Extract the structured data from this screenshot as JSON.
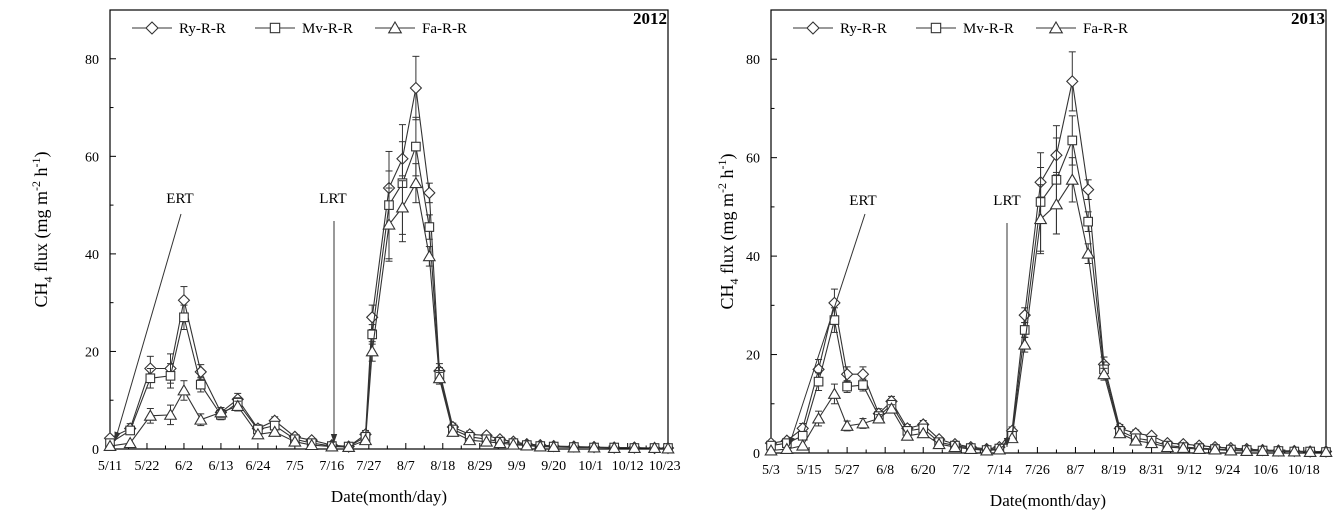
{
  "chart_data": [
    {
      "type": "line",
      "panel_label": "2012",
      "xlabel": "Date(month/day)",
      "ylabel": {
        "base": "CH",
        "sub": "4",
        "mid": " flux (mg m",
        "sup1": "-2",
        "gap": " h",
        "sup2": "-1",
        "end": ")"
      },
      "ylim": [
        0,
        90
      ],
      "yticks": [
        0,
        20,
        40,
        60,
        80
      ],
      "xlim": [
        0,
        166
      ],
      "xticks": [
        {
          "label": "5/11",
          "day": 0
        },
        {
          "label": "5/22",
          "day": 11
        },
        {
          "label": "6/2",
          "day": 22
        },
        {
          "label": "6/13",
          "day": 33
        },
        {
          "label": "6/24",
          "day": 44
        },
        {
          "label": "7/5",
          "day": 55
        },
        {
          "label": "7/16",
          "day": 66
        },
        {
          "label": "7/27",
          "day": 77
        },
        {
          "label": "8/7",
          "day": 88
        },
        {
          "label": "8/18",
          "day": 99
        },
        {
          "label": "8/29",
          "day": 110
        },
        {
          "label": "9/9",
          "day": 121
        },
        {
          "label": "9/20",
          "day": 132
        },
        {
          "label": "10/1",
          "day": 143
        },
        {
          "label": "10/12",
          "day": 154
        },
        {
          "label": "10/23",
          "day": 165
        }
      ],
      "x": [
        0,
        6,
        12,
        18,
        22,
        27,
        33,
        38,
        44,
        49,
        55,
        60,
        66,
        71,
        76,
        78,
        83,
        87,
        91,
        95,
        98,
        102,
        107,
        112,
        116,
        120,
        124,
        128,
        132,
        138,
        144,
        150,
        156,
        162,
        166
      ],
      "series": [
        {
          "name": "Ry-R-R",
          "marker": "diamond",
          "values": [
            2.2,
            4.2,
            16.5,
            16.5,
            30.5,
            15.8,
            7.5,
            10.2,
            4.2,
            5.8,
            2.5,
            1.8,
            0.8,
            0.5,
            3.0,
            27.0,
            53.5,
            59.5,
            74.0,
            52.5,
            16.0,
            4.5,
            3.0,
            2.8,
            2.0,
            1.5,
            1.0,
            0.8,
            0.6,
            0.5,
            0.4,
            0.3,
            0.3,
            0.2,
            0.2
          ],
          "err": [
            0.5,
            1.0,
            2.5,
            3.0,
            2.8,
            1.5,
            1.0,
            1.2,
            0.8,
            0.8,
            0.5,
            0.4,
            0.3,
            0.3,
            0.8,
            2.5,
            3.5,
            3.5,
            6.5,
            2.0,
            1.5,
            0.8,
            0.7,
            0.5,
            0.5,
            0.4,
            0.3,
            0.3,
            0.2,
            0.2,
            0.2,
            0.1,
            0.1,
            0.1,
            0.1
          ]
        },
        {
          "name": "Mv-R-R",
          "marker": "square",
          "values": [
            1.2,
            3.8,
            14.5,
            15.0,
            27.0,
            13.2,
            7.0,
            9.5,
            4.0,
            4.8,
            2.0,
            1.2,
            0.6,
            0.5,
            2.5,
            23.5,
            50.0,
            54.5,
            62.0,
            45.5,
            15.2,
            4.0,
            2.5,
            2.0,
            1.5,
            1.2,
            0.8,
            0.6,
            0.5,
            0.4,
            0.3,
            0.3,
            0.2,
            0.2,
            0.2
          ],
          "err": [
            0.4,
            0.8,
            2.0,
            2.5,
            2.5,
            1.5,
            1.0,
            1.0,
            0.7,
            0.7,
            0.4,
            0.3,
            0.2,
            0.2,
            0.6,
            2.0,
            11.0,
            12.0,
            6.0,
            2.5,
            1.5,
            0.7,
            0.6,
            0.5,
            0.4,
            0.3,
            0.3,
            0.2,
            0.2,
            0.2,
            0.1,
            0.1,
            0.1,
            0.1,
            0.1
          ]
        },
        {
          "name": "Fa-R-R",
          "marker": "triangle",
          "values": [
            0.6,
            1.2,
            6.8,
            7.0,
            12.0,
            6.0,
            7.5,
            8.8,
            3.0,
            3.5,
            1.5,
            0.8,
            0.5,
            0.4,
            1.8,
            20.0,
            46.0,
            49.5,
            54.5,
            39.5,
            14.5,
            3.5,
            1.8,
            1.5,
            1.2,
            0.9,
            0.7,
            0.5,
            0.4,
            0.3,
            0.3,
            0.2,
            0.2,
            0.2,
            0.1
          ],
          "err": [
            0.3,
            0.5,
            1.5,
            2.0,
            2.0,
            1.2,
            1.0,
            1.0,
            0.6,
            0.6,
            0.3,
            0.3,
            0.2,
            0.2,
            0.5,
            2.0,
            7.5,
            5.5,
            4.0,
            2.0,
            1.2,
            0.6,
            0.4,
            0.4,
            0.3,
            0.3,
            0.2,
            0.2,
            0.2,
            0.1,
            0.1,
            0.1,
            0.1,
            0.1,
            0.1
          ]
        }
      ],
      "annotations": [
        {
          "label": "ERT",
          "day": 0
        },
        {
          "label": "LRT",
          "day": 66
        }
      ],
      "legend": "top-left"
    },
    {
      "type": "line",
      "panel_label": "2013",
      "xlabel": "Date(month/day)",
      "ylabel": {
        "base": "CH",
        "sub": "4",
        "mid": " flux (mg m",
        "sup1": "-2",
        "gap": " h",
        "sup2": "-1",
        "end": ")"
      },
      "ylim": [
        0,
        90
      ],
      "yticks": [
        0,
        20,
        40,
        60,
        80
      ],
      "xlim": [
        0,
        175
      ],
      "xticks": [
        {
          "label": "5/3",
          "day": 0
        },
        {
          "label": "5/15",
          "day": 12
        },
        {
          "label": "5/27",
          "day": 24
        },
        {
          "label": "6/8",
          "day": 36
        },
        {
          "label": "6/20",
          "day": 48
        },
        {
          "label": "7/2",
          "day": 60
        },
        {
          "label": "7/14",
          "day": 72
        },
        {
          "label": "7/26",
          "day": 84
        },
        {
          "label": "8/7",
          "day": 96
        },
        {
          "label": "8/19",
          "day": 108
        },
        {
          "label": "8/31",
          "day": 120
        },
        {
          "label": "9/12",
          "day": 132
        },
        {
          "label": "9/24",
          "day": 144
        },
        {
          "label": "10/6",
          "day": 156
        },
        {
          "label": "10/18",
          "day": 168
        }
      ],
      "x": [
        0,
        5,
        10,
        15,
        20,
        24,
        29,
        34,
        38,
        43,
        48,
        53,
        58,
        63,
        68,
        72,
        76,
        80,
        85,
        90,
        95,
        100,
        105,
        110,
        115,
        120,
        125,
        130,
        135,
        140,
        145,
        150,
        155,
        160,
        165,
        170,
        175
      ],
      "series": [
        {
          "name": "Ry-R-R",
          "marker": "diamond",
          "values": [
            2.0,
            2.5,
            5.0,
            17.0,
            30.5,
            16.0,
            16.0,
            8.0,
            10.5,
            5.0,
            5.8,
            2.8,
            1.8,
            1.2,
            0.8,
            1.2,
            4.5,
            28.0,
            55.0,
            60.5,
            75.5,
            53.5,
            18.0,
            5.0,
            4.0,
            3.5,
            2.0,
            1.8,
            1.5,
            1.2,
            1.0,
            0.8,
            0.6,
            0.5,
            0.4,
            0.3,
            0.3
          ],
          "err": [
            0.4,
            0.6,
            1.0,
            2.0,
            2.8,
            1.5,
            1.5,
            1.0,
            1.0,
            0.8,
            0.8,
            0.5,
            0.4,
            0.3,
            0.3,
            0.3,
            0.8,
            1.5,
            3.0,
            3.5,
            6.0,
            2.0,
            1.5,
            0.8,
            0.7,
            0.6,
            0.5,
            0.4,
            0.3,
            0.3,
            0.2,
            0.2,
            0.2,
            0.1,
            0.1,
            0.1,
            0.1
          ]
        },
        {
          "name": "Mv-R-R",
          "marker": "square",
          "values": [
            1.5,
            2.0,
            3.5,
            14.5,
            27.0,
            13.5,
            13.8,
            7.5,
            9.8,
            4.5,
            5.0,
            2.2,
            1.5,
            1.0,
            0.6,
            0.9,
            3.5,
            25.0,
            51.0,
            55.5,
            63.5,
            47.0,
            17.0,
            4.5,
            3.0,
            2.5,
            1.5,
            1.2,
            1.0,
            0.8,
            0.7,
            0.6,
            0.5,
            0.4,
            0.3,
            0.3,
            0.2
          ],
          "err": [
            0.3,
            0.5,
            0.8,
            1.8,
            2.5,
            1.2,
            1.2,
            0.8,
            0.8,
            0.7,
            0.7,
            0.4,
            0.3,
            0.2,
            0.2,
            0.2,
            0.6,
            1.5,
            10.0,
            11.0,
            5.0,
            2.0,
            1.5,
            0.7,
            0.6,
            0.5,
            0.4,
            0.3,
            0.3,
            0.2,
            0.2,
            0.2,
            0.1,
            0.1,
            0.1,
            0.1,
            0.1
          ]
        },
        {
          "name": "Fa-R-R",
          "marker": "triangle",
          "values": [
            0.5,
            0.8,
            1.5,
            7.0,
            12.0,
            5.5,
            6.0,
            7.0,
            9.0,
            3.5,
            4.0,
            1.8,
            1.2,
            0.8,
            0.5,
            0.7,
            3.0,
            22.0,
            47.5,
            50.5,
            55.5,
            40.5,
            16.0,
            4.0,
            2.5,
            2.0,
            1.2,
            1.0,
            0.8,
            0.7,
            0.5,
            0.4,
            0.4,
            0.3,
            0.3,
            0.2,
            0.2
          ],
          "err": [
            0.2,
            0.3,
            0.5,
            1.5,
            2.0,
            1.0,
            1.0,
            0.8,
            0.8,
            0.6,
            0.6,
            0.3,
            0.3,
            0.2,
            0.2,
            0.2,
            0.5,
            1.5,
            7.0,
            6.0,
            4.5,
            2.0,
            1.2,
            0.6,
            0.5,
            0.4,
            0.3,
            0.3,
            0.2,
            0.2,
            0.2,
            0.1,
            0.1,
            0.1,
            0.1,
            0.1,
            0.1
          ]
        }
      ],
      "annotations": [
        {
          "label": "ERT",
          "day": 0
        },
        {
          "label": "LRT",
          "day": 72
        }
      ],
      "legend": "top-left"
    }
  ]
}
